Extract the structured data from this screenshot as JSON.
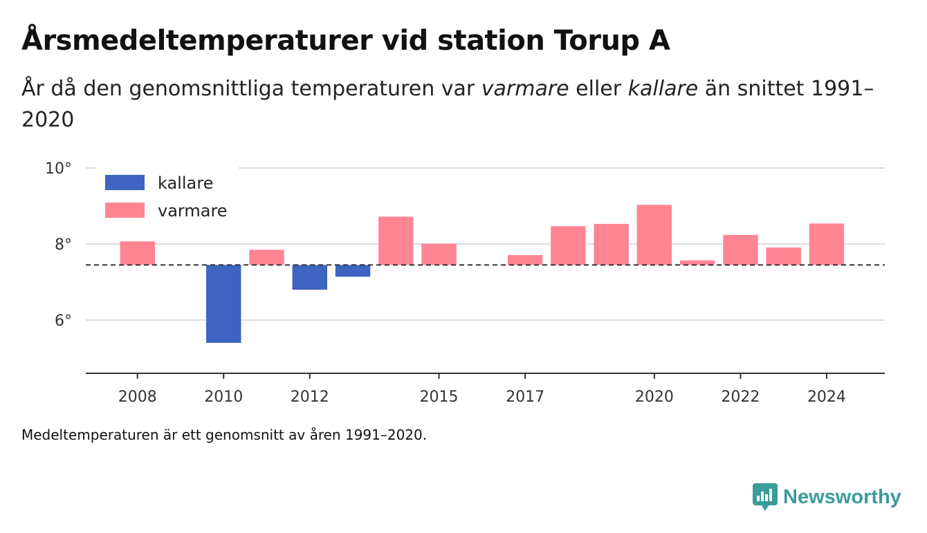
{
  "title": "Årsmedeltemperaturer vid station Torup A",
  "subtitle": {
    "part1": "År då den genomsnittliga temperaturen var ",
    "em1": "varmare",
    "part2": " eller ",
    "em2": "kallare",
    "part3": " än snittet 1991–2020"
  },
  "caption": "Medeltemperaturen är ett genomsnitt av åren 1991–2020.",
  "brand": {
    "name": "Newsworthy",
    "icon": "newsworthy-logo-icon",
    "color": "#3a9c9b"
  },
  "chart_data": {
    "type": "bar",
    "baseline": 7.45,
    "ylim": [
      4.6,
      10
    ],
    "yticks": [
      6,
      8,
      10
    ],
    "ytick_labels": [
      "6°",
      "8°",
      "10°"
    ],
    "xlim": [
      2006.8,
      2025.35
    ],
    "xticks": [
      2008,
      2010,
      2012,
      2015,
      2017,
      2020,
      2022,
      2024
    ],
    "xtick_labels": [
      "2008",
      "2010",
      "2012",
      "2015",
      "2017",
      "2020",
      "2022",
      "2024"
    ],
    "grid": true,
    "legend": {
      "position": "top-left",
      "items": [
        {
          "label": "kallare",
          "color": "#3f63c0"
        },
        {
          "label": "varmare",
          "color": "#ff8593"
        }
      ]
    },
    "colors": {
      "kallare": "#3f63c0",
      "varmare": "#ff8593"
    },
    "x": [
      2008,
      2010,
      2011,
      2012,
      2013,
      2014,
      2015,
      2017,
      2018,
      2019,
      2020,
      2021,
      2022,
      2023,
      2024
    ],
    "values": [
      8.07,
      5.4,
      7.85,
      6.8,
      7.14,
      8.72,
      8.01,
      7.71,
      8.47,
      8.53,
      9.03,
      7.57,
      8.24,
      7.91,
      8.54
    ]
  }
}
